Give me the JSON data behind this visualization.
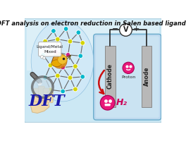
{
  "title": "DFT analysis on electron reduction in Salen based ligands",
  "title_fontsize": 6.0,
  "cathode_label": "Cathode",
  "anode_label": "Anode",
  "proton_label": "Proton",
  "h2_label": "H₂",
  "dft_label": "DFT",
  "voltmeter_label": "V",
  "ligand_label": "Ligand/Metal\nMixed",
  "bg_outer": "#ffffff",
  "bg_inner": "#cce8f4",
  "bg_upper": "#e8f4fa",
  "electrode_color": "#b8b8b8",
  "electrode_edge": "#888888",
  "cell_edge": "#6aaccc",
  "wire_color": "#222222",
  "volt_face": "#ffffff",
  "proton_color": "#e8187a",
  "h2_color": "#e8187a",
  "arrow_color": "#cc1111",
  "node_cyan": "#00b8cc",
  "node_yellow": "#d4d400",
  "node_pink": "#cc2288",
  "bond_color": "#666666",
  "magnifier_frame": "#606060",
  "magnifier_lens": "#b8d8ee",
  "hand_color": "#f0d8a8",
  "hand_dark": "#d4b888",
  "cloud_bg": "#ffffff",
  "dft_color": "#1a1aaa",
  "lion_gold": "#e8a800",
  "lion_mane": "#cc7700"
}
